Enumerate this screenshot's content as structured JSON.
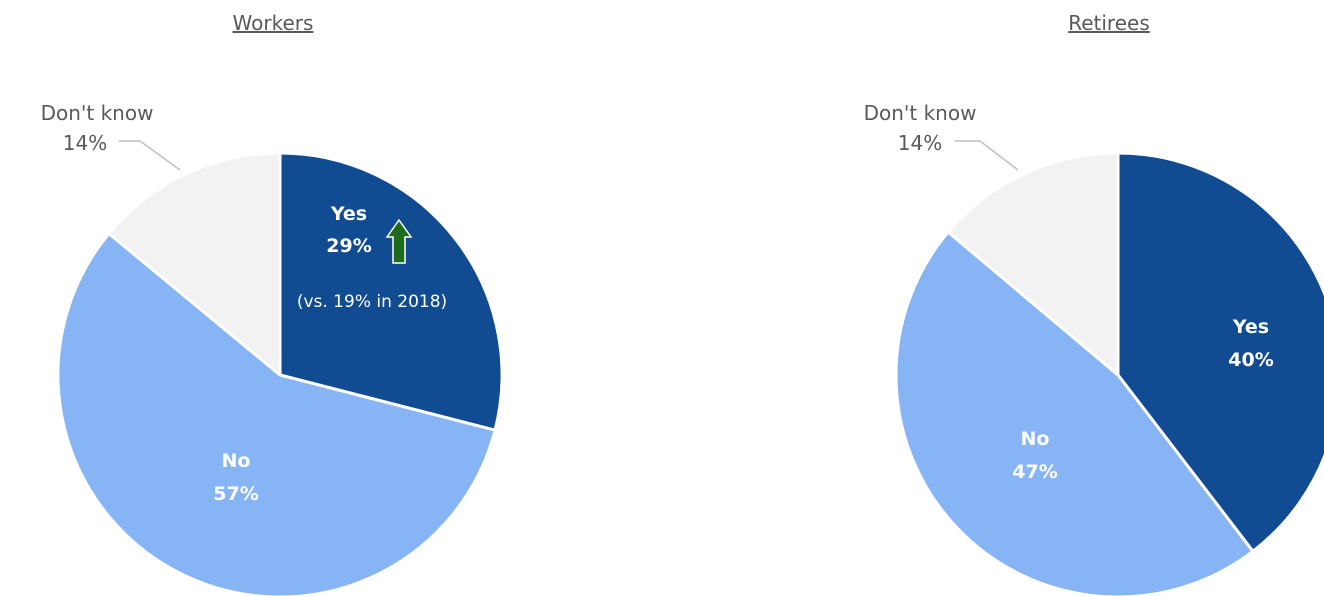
{
  "chart_data": [
    {
      "type": "pie",
      "title": "Workers",
      "slices": [
        {
          "label": "Yes",
          "value": 29,
          "display": "29%",
          "color": "#114b91"
        },
        {
          "label": "No",
          "value": 57,
          "display": "57%",
          "color": "#86b4f4"
        },
        {
          "label": "Don't know",
          "value": 14,
          "display": "14%",
          "color": "#f2f2f2"
        }
      ],
      "annotation": {
        "text": "(vs. 19% in 2018)",
        "icon": "up-arrow-icon",
        "icon_color": "#1e6b1e"
      }
    },
    {
      "type": "pie",
      "title": "Retirees",
      "slices": [
        {
          "label": "Yes",
          "value": 40,
          "display": "40%",
          "color": "#114b91"
        },
        {
          "label": "No",
          "value": 47,
          "display": "47%",
          "color": "#86b4f4"
        },
        {
          "label": "Don't know",
          "value": 14,
          "display": "14%",
          "color": "#f2f2f2"
        }
      ]
    }
  ]
}
